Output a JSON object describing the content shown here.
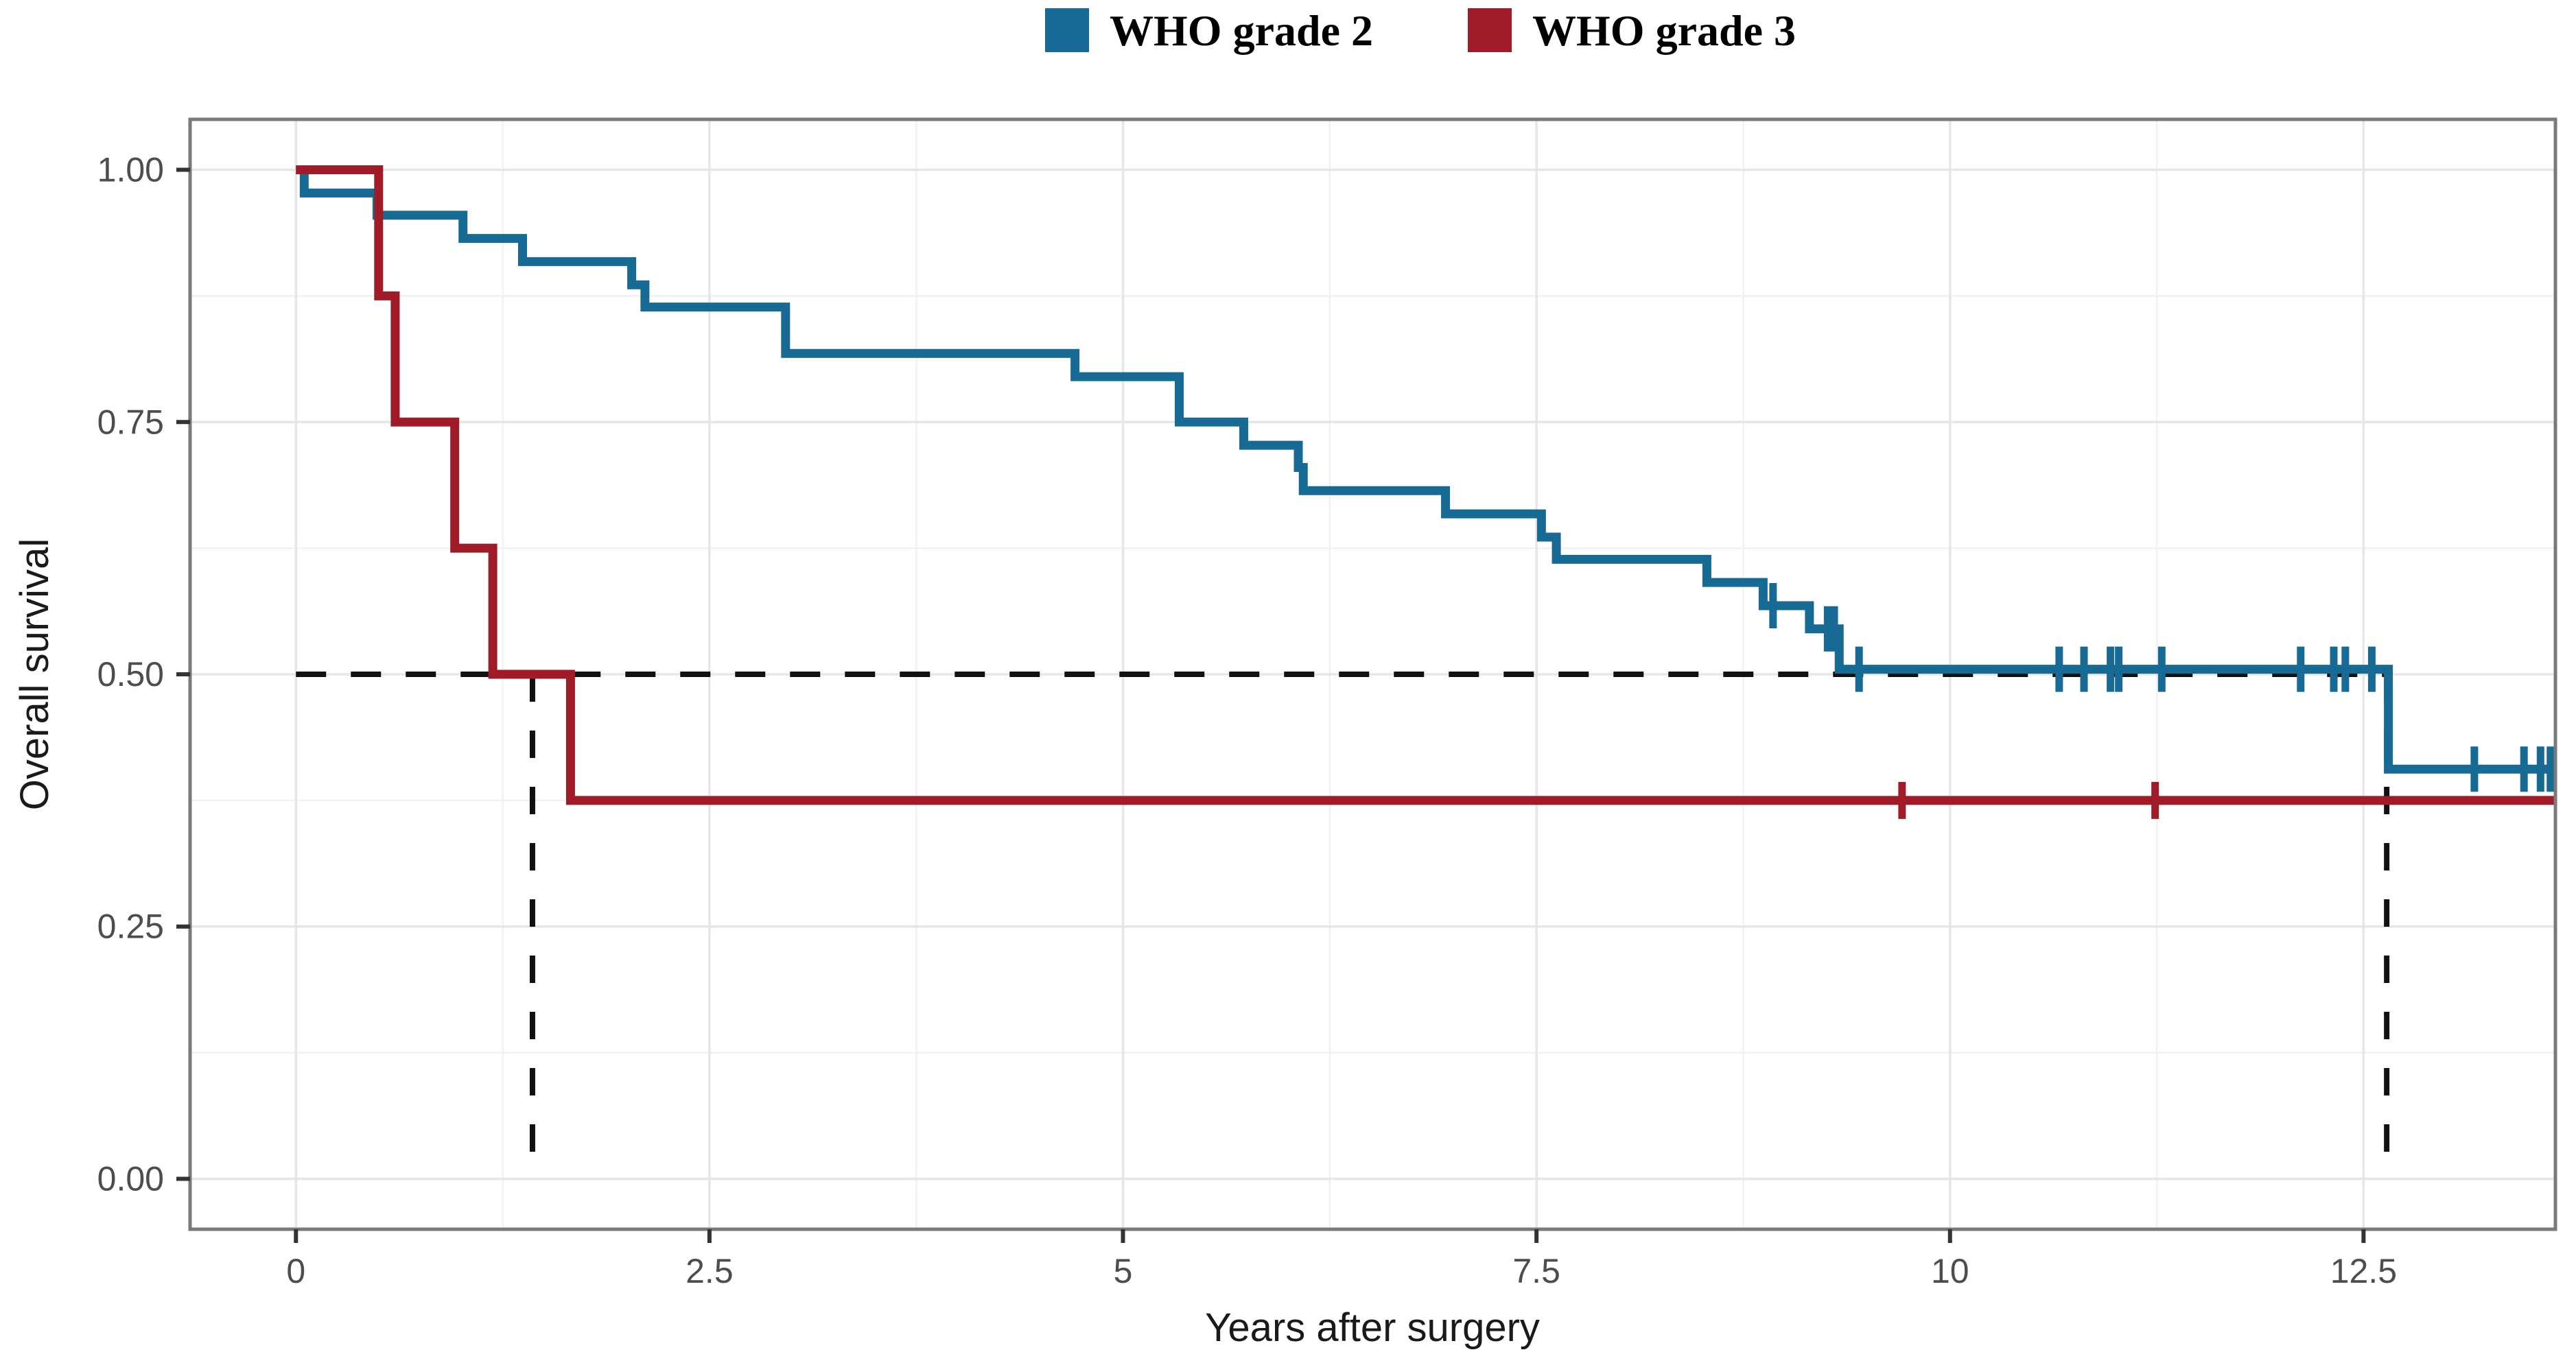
{
  "chart_data": {
    "type": "line",
    "subtype": "kaplan-meier-step",
    "title": "",
    "xlabel": "Years after surgery",
    "ylabel": "Overall survival",
    "xlim": [
      -0.64,
      13.66
    ],
    "ylim": [
      -0.05,
      1.05
    ],
    "x_ticks": [
      0,
      2.5,
      5,
      7.5,
      10,
      12.5
    ],
    "x_tick_labels": [
      "0",
      "2.5",
      "5",
      "7.5",
      "10",
      "12.5"
    ],
    "y_ticks": [
      0.0,
      0.25,
      0.5,
      0.75,
      1.0
    ],
    "y_tick_labels": [
      "0.00",
      "0.25",
      "0.50",
      "0.75",
      "1.00"
    ],
    "x_minor_gridlines": [
      1.25,
      3.75,
      6.25,
      8.75,
      11.25
    ],
    "y_minor_gridlines": [
      0.125,
      0.375,
      0.625,
      0.875
    ],
    "grid": "on",
    "legend_position": "top",
    "series": [
      {
        "name": "WHO grade 2",
        "color": "#176a94",
        "start": [
          0,
          1.0
        ],
        "end_x": 13.66,
        "steps": [
          [
            0.05,
            0.977
          ],
          [
            0.49,
            0.955
          ],
          [
            1.01,
            0.932
          ],
          [
            1.37,
            0.909
          ],
          [
            2.03,
            0.886
          ],
          [
            2.11,
            0.864
          ],
          [
            2.96,
            0.818
          ],
          [
            4.71,
            0.795
          ],
          [
            5.34,
            0.75
          ],
          [
            5.73,
            0.727
          ],
          [
            6.06,
            0.705
          ],
          [
            6.09,
            0.682
          ],
          [
            6.95,
            0.659
          ],
          [
            7.53,
            0.636
          ],
          [
            7.62,
            0.614
          ],
          [
            8.53,
            0.591
          ],
          [
            8.87,
            0.568
          ],
          [
            9.15,
            0.545
          ],
          [
            9.33,
            0.505
          ],
          [
            12.65,
            0.406
          ]
        ],
        "censors": [
          [
            8.93,
            0.568
          ],
          [
            9.26,
            0.545
          ],
          [
            9.3,
            0.545
          ],
          [
            9.45,
            0.505
          ],
          [
            10.66,
            0.505
          ],
          [
            10.81,
            0.505
          ],
          [
            10.97,
            0.505
          ],
          [
            11.02,
            0.505
          ],
          [
            11.28,
            0.505
          ],
          [
            12.12,
            0.505
          ],
          [
            12.32,
            0.505
          ],
          [
            12.39,
            0.505
          ],
          [
            12.55,
            0.505
          ],
          [
            13.17,
            0.406
          ],
          [
            13.47,
            0.406
          ],
          [
            13.57,
            0.406
          ],
          [
            13.63,
            0.406
          ]
        ]
      },
      {
        "name": "WHO grade 3",
        "color": "#a01b28",
        "start": [
          0,
          1.0
        ],
        "end_x": 13.66,
        "steps": [
          [
            0.5,
            0.875
          ],
          [
            0.6,
            0.75
          ],
          [
            0.96,
            0.625
          ],
          [
            1.19,
            0.5
          ],
          [
            1.66,
            0.375
          ]
        ],
        "censors": [
          [
            9.71,
            0.375
          ],
          [
            11.24,
            0.375
          ]
        ]
      }
    ],
    "median_annotations": {
      "survival_level": 0.5,
      "h_line": {
        "v": 0.5,
        "t_start": 0,
        "t_end": 12.64
      },
      "v_lines": [
        {
          "t": 1.43
        },
        {
          "t": 12.64
        }
      ],
      "line_color": "#111111"
    },
    "panel": {
      "border_color": "#7a7a7a",
      "major_grid_color": "#e6e6e6",
      "minor_grid_color": "#f1f1f1",
      "background": "#ffffff"
    }
  },
  "legend": {
    "items": [
      {
        "label": "WHO grade 2",
        "color": "#176a94"
      },
      {
        "label": "WHO grade 3",
        "color": "#a01b28"
      }
    ]
  }
}
